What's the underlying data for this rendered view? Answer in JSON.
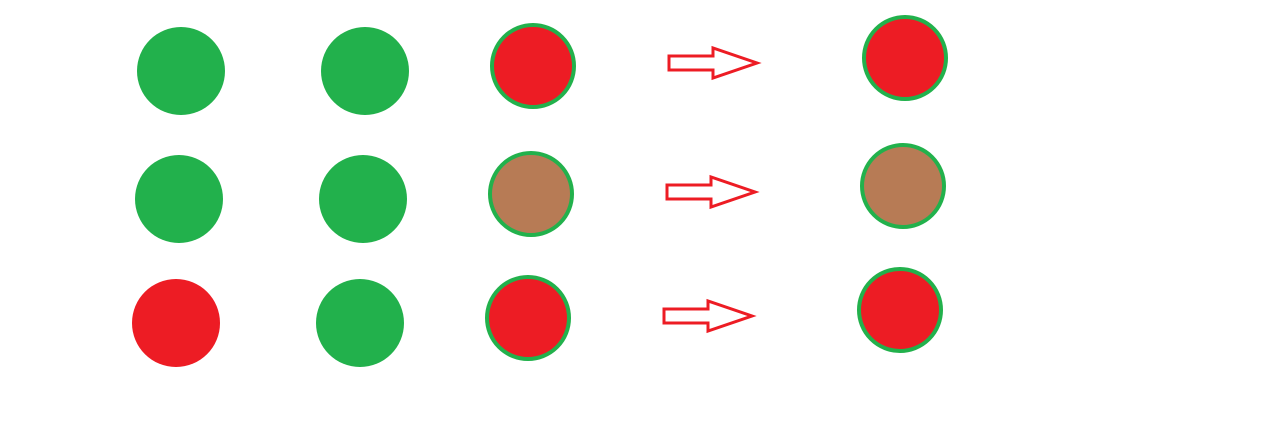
{
  "colors": {
    "background": "#ffffff",
    "green": "#22b14c",
    "red": "#ed1c24",
    "brown": "#b77b55",
    "ring": "#22b14c",
    "arrow_stroke": "#ed1c24",
    "arrow_fill": "#ffffff"
  },
  "rows": [
    {
      "inputs": [
        "green",
        "green"
      ],
      "combined": "red",
      "arrow": "right-arrow-icon",
      "result": "red"
    },
    {
      "inputs": [
        "green",
        "green"
      ],
      "combined": "brown",
      "arrow": "right-arrow-icon",
      "result": "brown"
    },
    {
      "inputs": [
        "red",
        "green"
      ],
      "combined": "red",
      "arrow": "right-arrow-icon",
      "result": "red"
    }
  ]
}
